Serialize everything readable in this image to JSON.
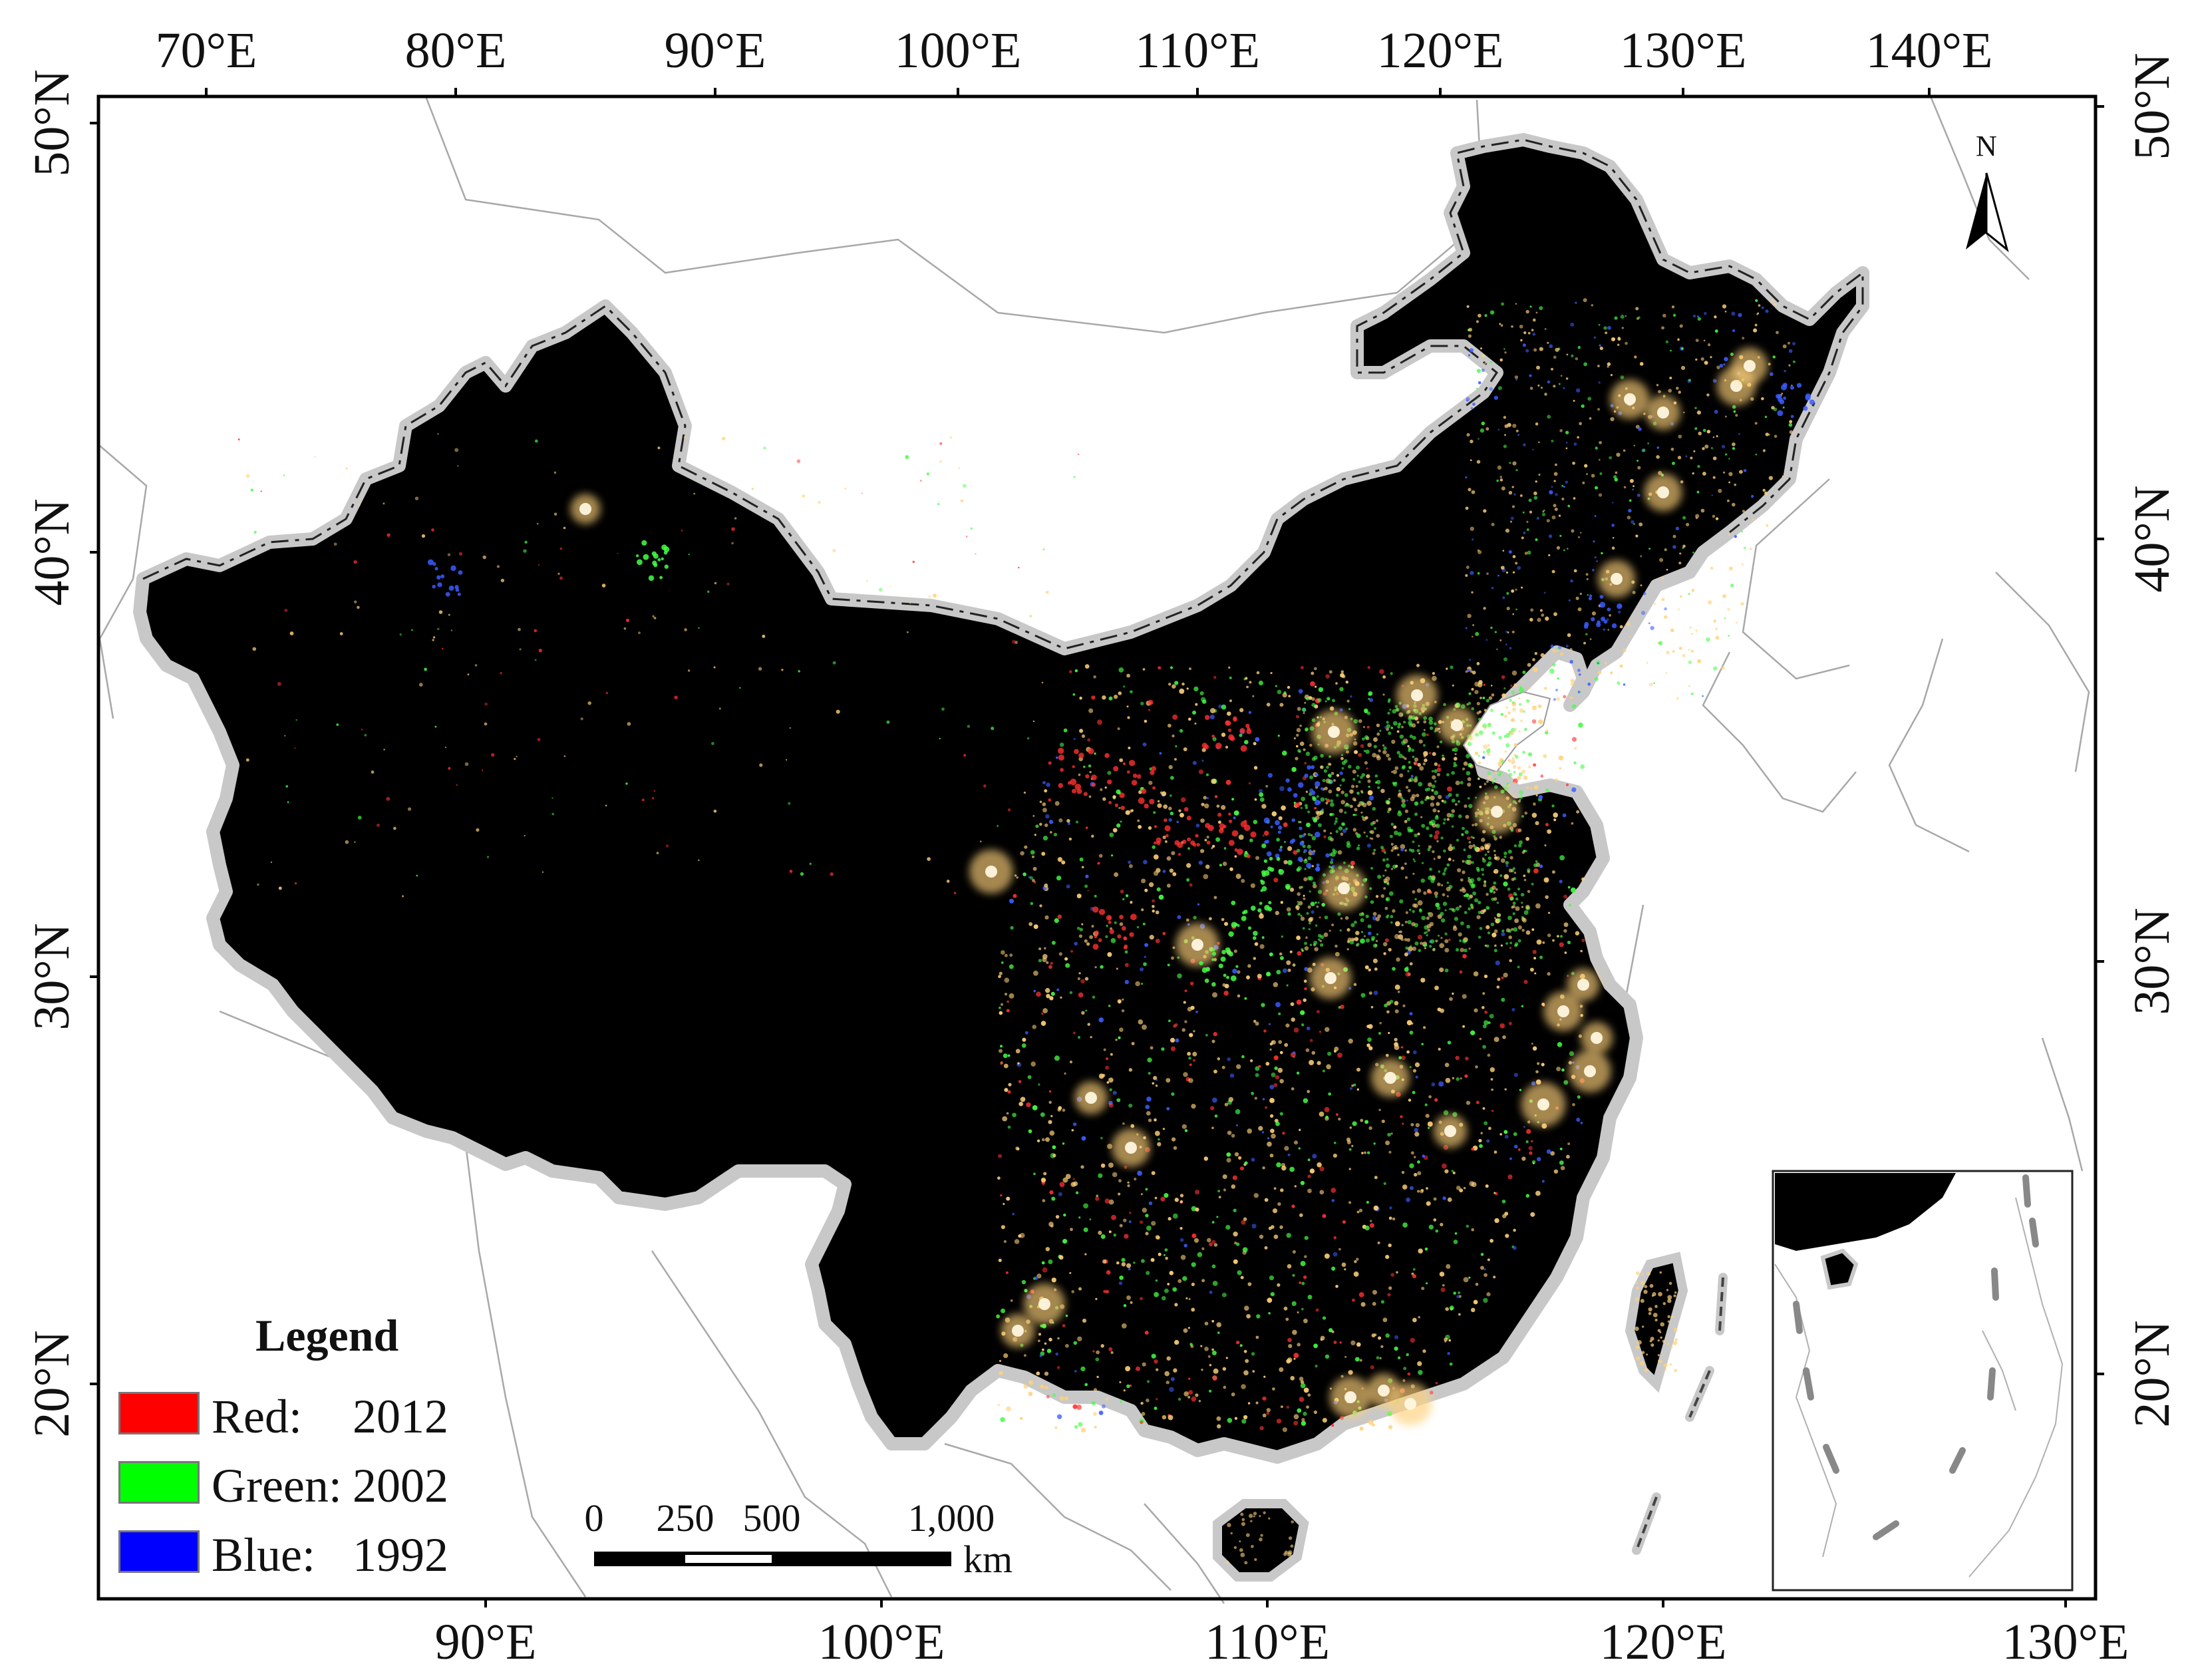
{
  "top_longitude_labels": [
    "70°E",
    "80°E",
    "90°E",
    "100°E",
    "110°E",
    "120°E",
    "130°E",
    "140°E"
  ],
  "bottom_longitude_labels": [
    "90°E",
    "100°E",
    "110°E",
    "120°E",
    "130°E"
  ],
  "left_latitude_labels": [
    "50°N",
    "40°N",
    "30°N",
    "20°N"
  ],
  "right_latitude_labels": [
    "50°N",
    "40°N",
    "30°N",
    "20°N"
  ],
  "north_arrow": {
    "label": "N",
    "icon": "north-arrow-icon"
  },
  "legend": {
    "title": "Legend",
    "items": [
      {
        "label": "Red:",
        "year": "2012",
        "color": "#ff0000"
      },
      {
        "label": "Green:",
        "year": "2002",
        "color": "#00ff00"
      },
      {
        "label": "Blue:",
        "year": "1992",
        "color": "#0000ff"
      }
    ]
  },
  "scale_bar": {
    "ticks": [
      "0",
      "250",
      "500",
      "1,000"
    ],
    "unit": "km"
  },
  "colors": {
    "land_mask": "#000000",
    "border_halo": "#c8c8c8",
    "outline": "#9a9a9a",
    "frame": "#000000",
    "light_warm": "#ffd27a",
    "light_red": "#ff3030",
    "light_green": "#44ff44",
    "light_blue": "#3a5cff"
  }
}
